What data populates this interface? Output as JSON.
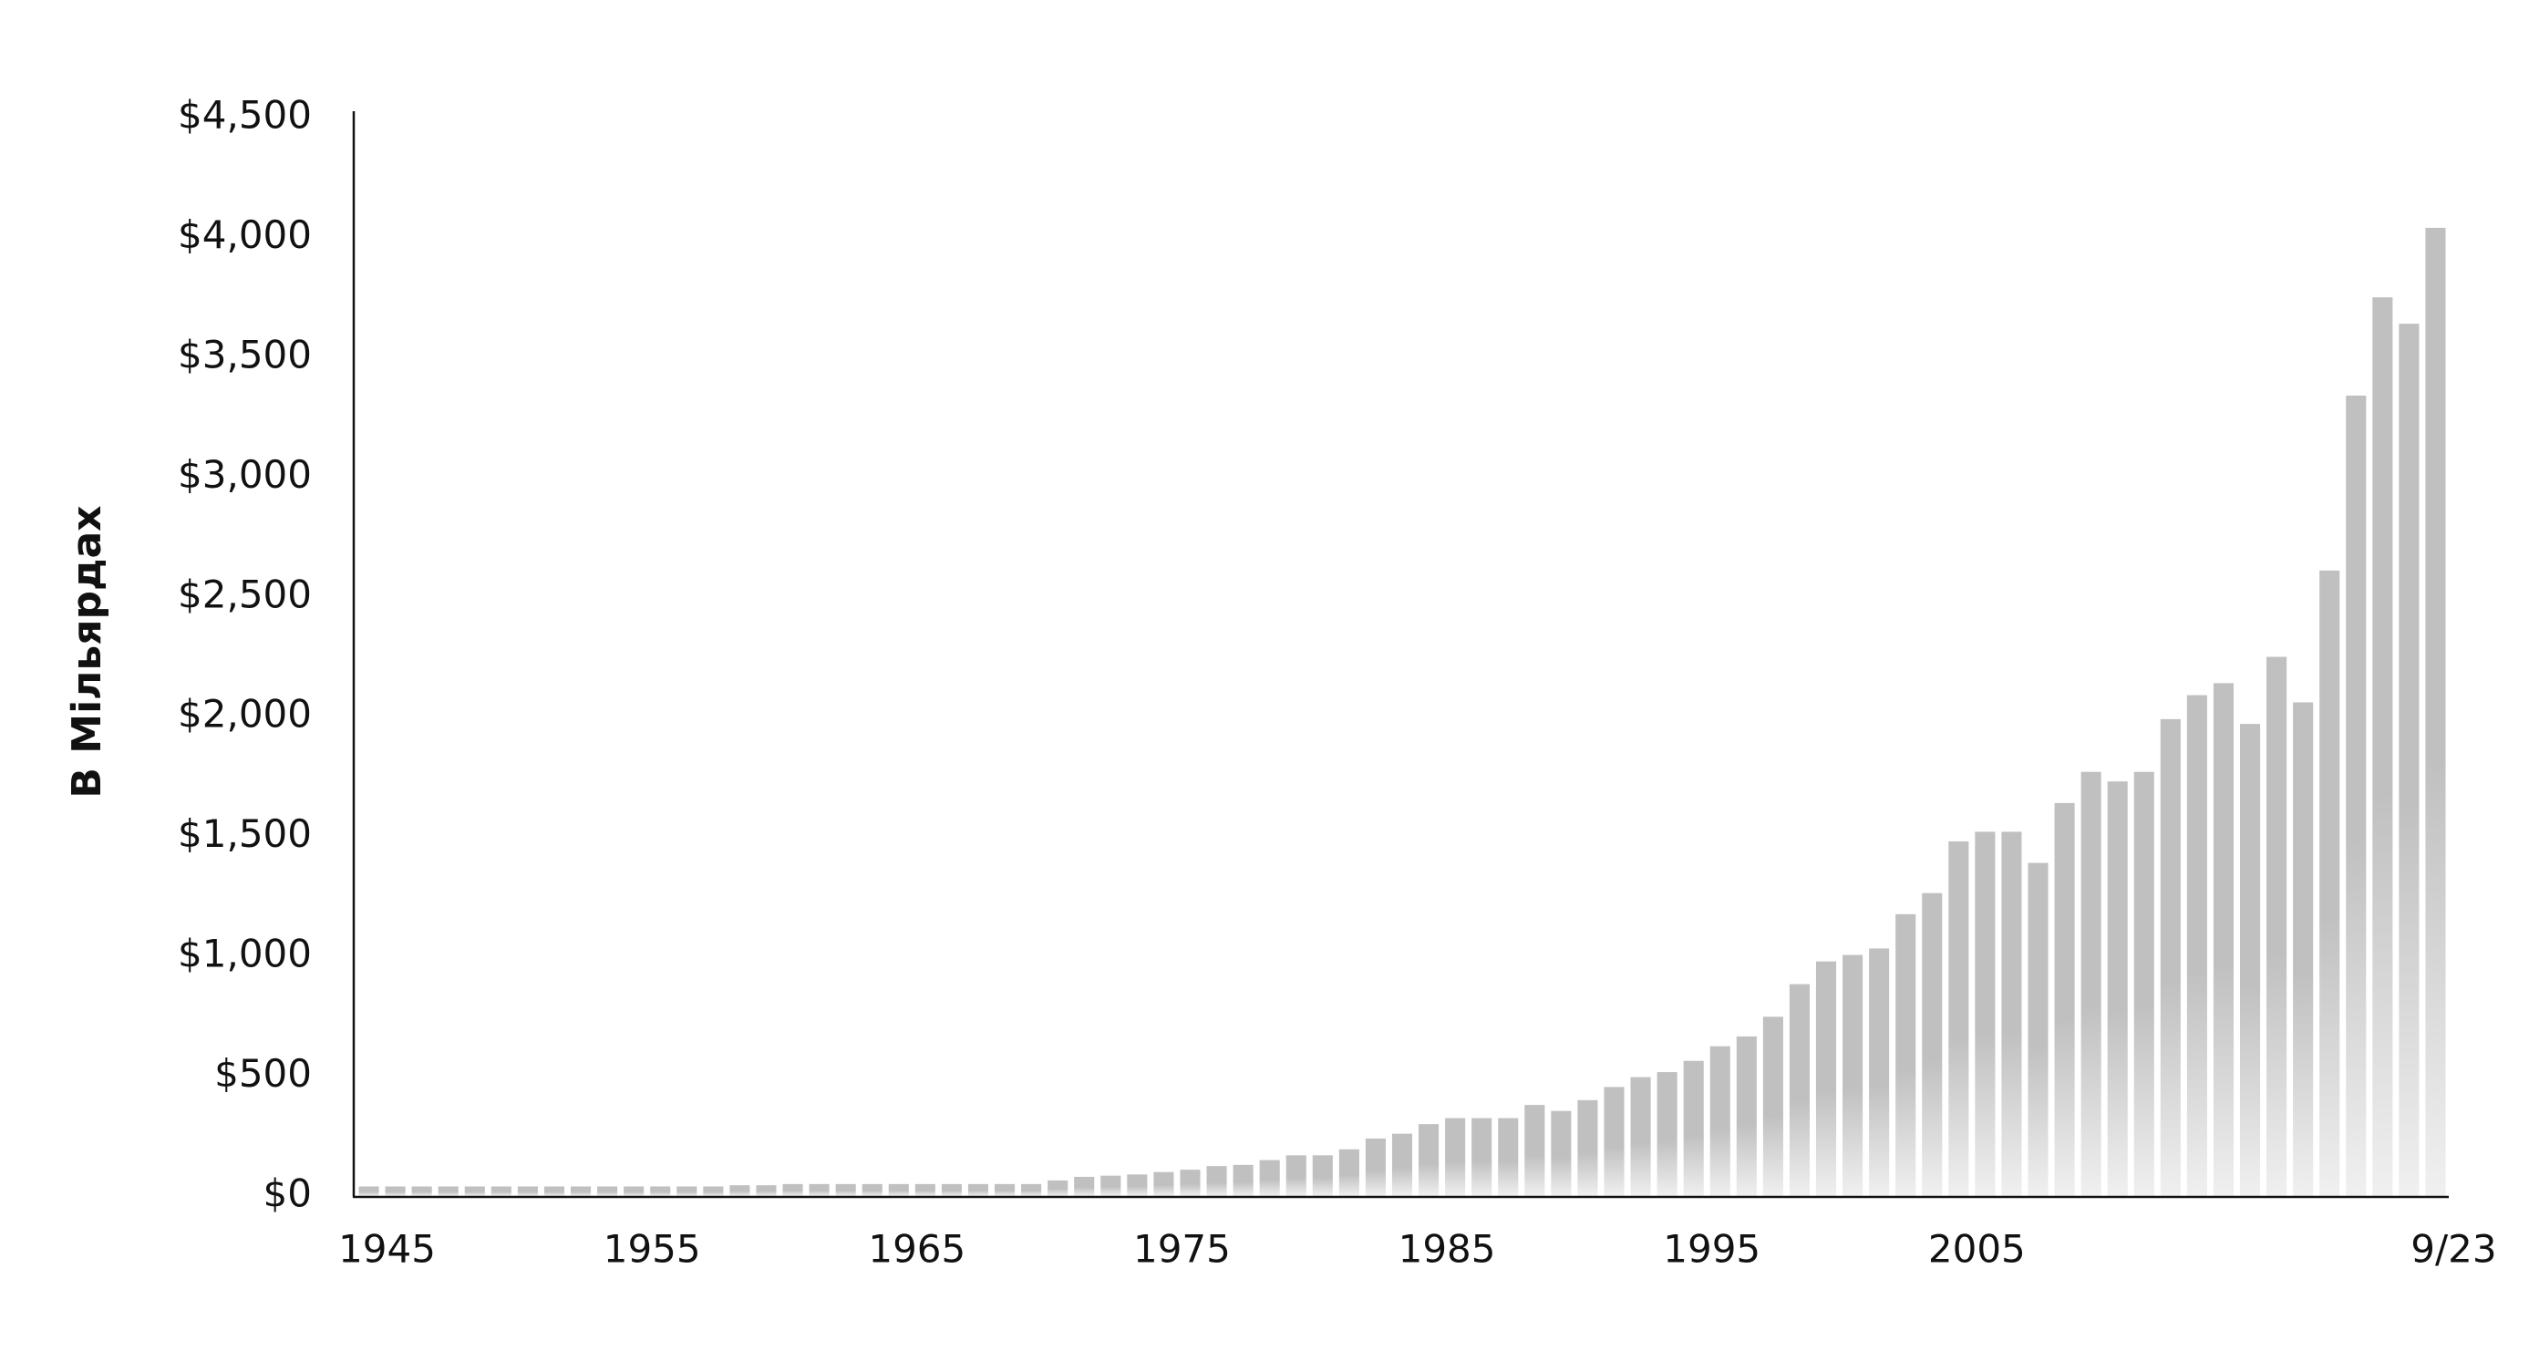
{
  "chart_data": {
    "type": "bar",
    "y_label": "В Мільярдах",
    "categories": [
      "1945",
      null,
      null,
      null,
      null,
      null,
      null,
      null,
      null,
      null,
      "1955",
      null,
      null,
      null,
      null,
      null,
      null,
      null,
      null,
      null,
      "1965",
      null,
      null,
      null,
      null,
      null,
      null,
      null,
      null,
      null,
      "1975",
      null,
      null,
      null,
      null,
      null,
      null,
      null,
      null,
      null,
      "1985",
      null,
      null,
      null,
      null,
      null,
      null,
      null,
      null,
      null,
      "1995",
      null,
      null,
      null,
      null,
      null,
      null,
      null,
      null,
      null,
      "2005",
      null,
      null,
      null,
      null,
      null,
      null,
      null,
      null,
      null,
      null,
      null,
      null,
      null,
      null,
      null,
      null,
      null,
      "9/23"
    ],
    "values": [
      40,
      40,
      40,
      40,
      40,
      40,
      40,
      40,
      40,
      40,
      40,
      40,
      40,
      40,
      45,
      45,
      50,
      50,
      50,
      50,
      50,
      50,
      50,
      50,
      50,
      50,
      65,
      80,
      85,
      90,
      100,
      110,
      125,
      130,
      150,
      170,
      170,
      195,
      240,
      260,
      300,
      325,
      325,
      325,
      380,
      355,
      400,
      455,
      496,
      517,
      564,
      625,
      666,
      748,
      884,
      979,
      1006,
      1033,
      1176,
      1264,
      1480,
      1520,
      1520,
      1390,
      1640,
      1770,
      1730,
      1770,
      1990,
      2090,
      2140,
      1970,
      2250,
      2060,
      2610,
      3340,
      3750,
      3640,
      4040
    ],
    "color": "#c0c0c0",
    "ylim": [
      0,
      4500
    ],
    "yticks": [
      {
        "value": 0,
        "label": "$0"
      },
      {
        "value": 500,
        "label": "$500"
      },
      {
        "value": 1000,
        "label": "$1,000"
      },
      {
        "value": 1500,
        "label": "$1,500"
      },
      {
        "value": 2000,
        "label": "$2,000"
      },
      {
        "value": 2500,
        "label": "$2,500"
      },
      {
        "value": 3000,
        "label": "$3,000"
      },
      {
        "value": 3500,
        "label": "$3,500"
      },
      {
        "value": 4000,
        "label": "$4,000"
      },
      {
        "value": 4500,
        "label": "$4,500"
      }
    ],
    "grid": false
  }
}
